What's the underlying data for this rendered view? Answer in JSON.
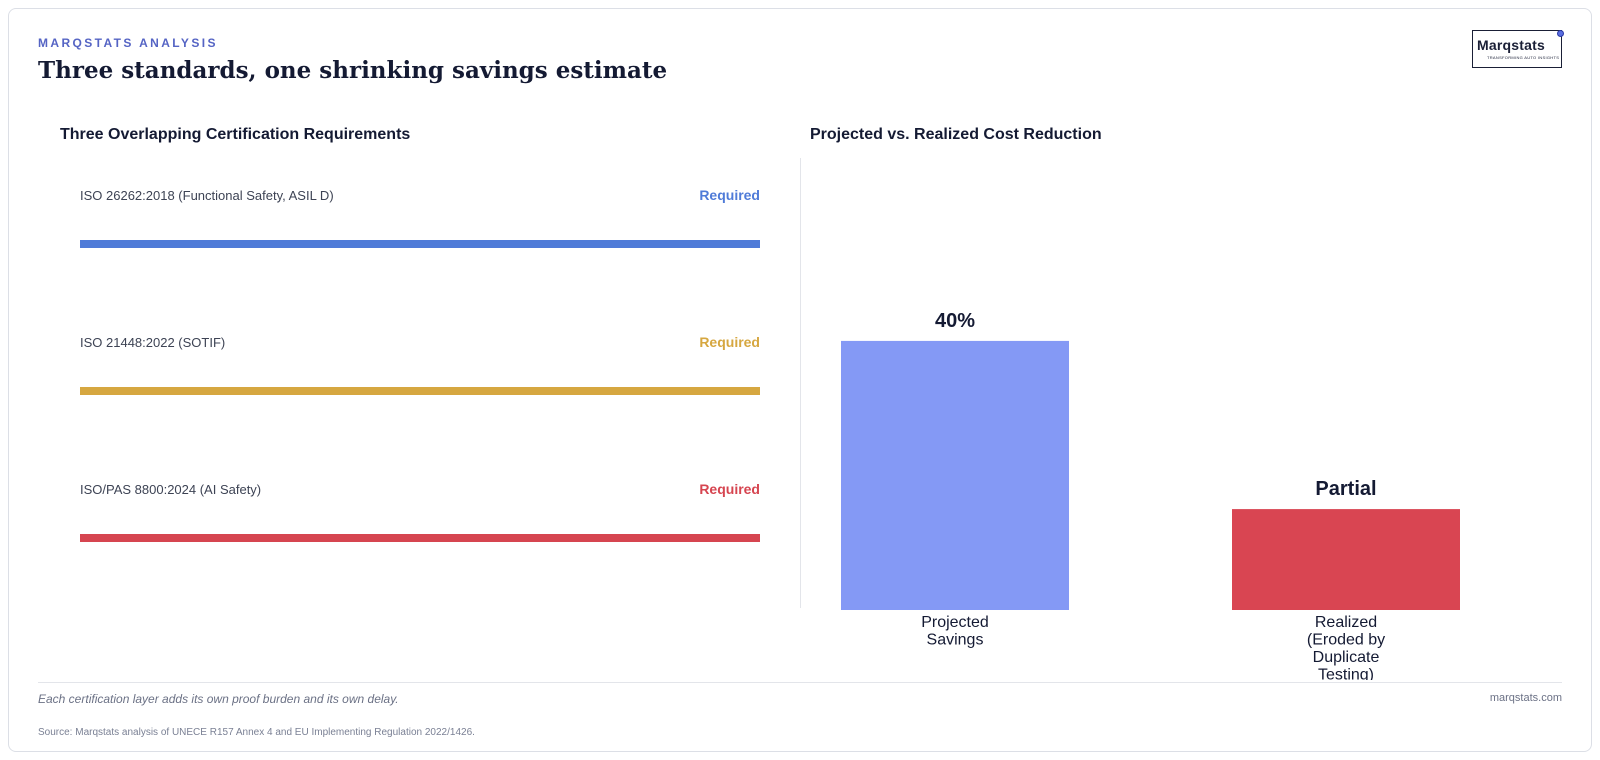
{
  "header": {
    "eyebrow": "MARQSTATS ANALYSIS",
    "title": "Three standards, one shrinking savings estimate"
  },
  "logo": {
    "wordmark": "Marqstats",
    "tagline": "TRANSFORMING AUTO INSIGHTS"
  },
  "left_panel": {
    "title": "Three Overlapping Certification Requirements",
    "items": [
      {
        "label": "ISO 26262:2018 (Functional Safety, ASIL D)",
        "status": "Required",
        "color": "#4f7bd8"
      },
      {
        "label": "ISO 21448:2022 (SOTIF)",
        "status": "Required",
        "color": "#d6a740"
      },
      {
        "label": "ISO/PAS 8800:2024 (AI Safety)",
        "status": "Required",
        "color": "#d64550"
      }
    ]
  },
  "chart_data": {
    "type": "bar",
    "title": "Projected vs. Realized Cost Reduction",
    "categories": [
      "Projected Savings",
      "Realized (Eroded by Duplicate Testing)"
    ],
    "values": [
      40,
      15
    ],
    "value_labels": [
      "40%",
      "Partial"
    ],
    "colors": [
      "#8499f5",
      "#d94552"
    ],
    "ylim": [
      0,
      55
    ],
    "grid": false,
    "legend": "none"
  },
  "footer": {
    "note": "Each certification layer adds its own proof burden and its own delay.",
    "site": "marqstats.com",
    "source": "Source: Marqstats analysis of UNECE R157 Annex 4 and EU Implementing Regulation 2022/1426."
  }
}
